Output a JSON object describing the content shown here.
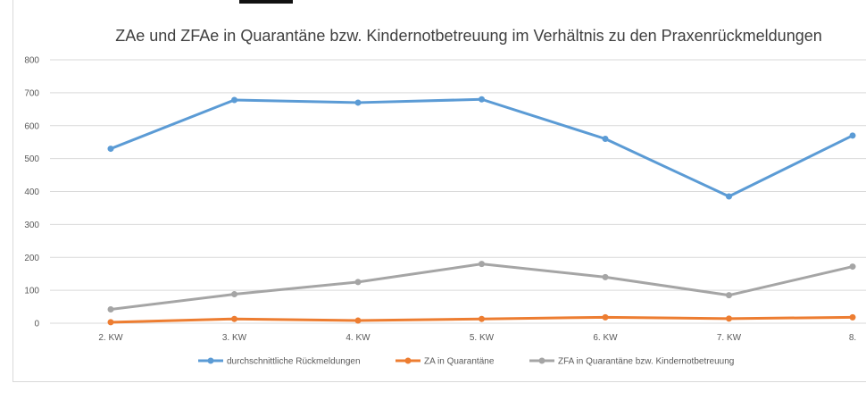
{
  "chart_data": {
    "type": "line",
    "title": "ZAe und ZFAe in Quarantäne bzw. Kindernotbetreuung im Verhältnis zu den Praxenrückmeldungen",
    "categories": [
      "2. KW",
      "3. KW",
      "4. KW",
      "5. KW",
      "6. KW",
      "7. KW",
      "8."
    ],
    "ylim": [
      0,
      800
    ],
    "yticks": [
      0,
      100,
      200,
      300,
      400,
      500,
      600,
      700,
      800
    ],
    "grid": true,
    "legend_position": "bottom",
    "series": [
      {
        "name": "durchschnittliche Rückmeldungen",
        "color": "#5b9bd5",
        "values": [
          530,
          678,
          670,
          680,
          560,
          385,
          570
        ]
      },
      {
        "name": "ZA in Quarantäne",
        "color": "#ed7d31",
        "values": [
          3,
          13,
          8,
          13,
          18,
          14,
          18
        ]
      },
      {
        "name": "ZFA in Quarantäne bzw. Kindernotbetreuung",
        "color": "#a5a5a5",
        "values": [
          42,
          88,
          125,
          180,
          140,
          85,
          172
        ]
      }
    ]
  }
}
